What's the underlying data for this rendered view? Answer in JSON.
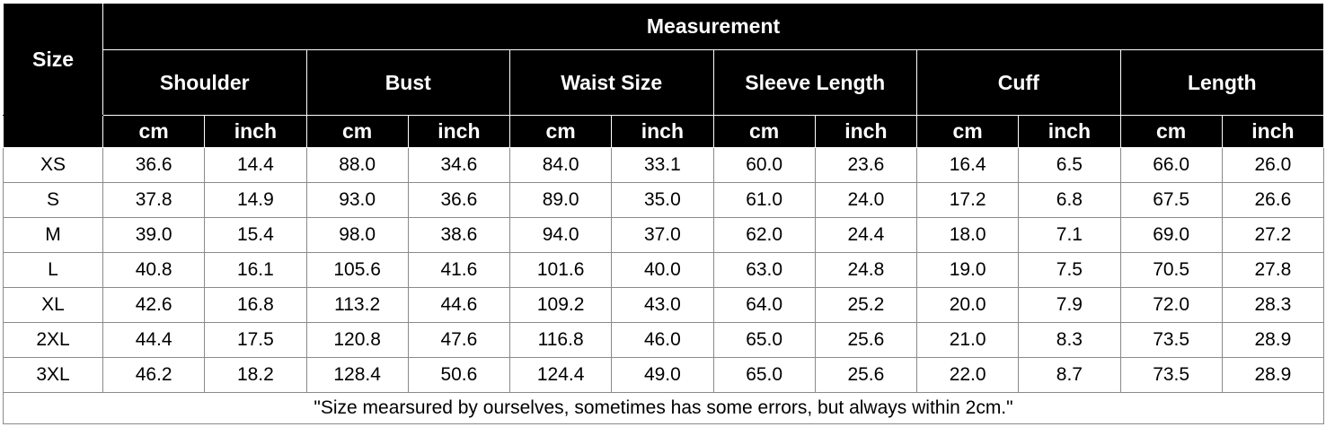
{
  "header": {
    "size": "Size",
    "measurement": "Measurement",
    "groups": [
      "Shoulder",
      "Bust",
      "Waist Size",
      "Sleeve Length",
      "Cuff",
      "Length"
    ],
    "units": [
      "cm",
      "inch"
    ]
  },
  "table": {
    "rows": [
      [
        "XS",
        "36.6",
        "14.4",
        "88.0",
        "34.6",
        "84.0",
        "33.1",
        "60.0",
        "23.6",
        "16.4",
        "6.5",
        "66.0",
        "26.0"
      ],
      [
        "S",
        "37.8",
        "14.9",
        "93.0",
        "36.6",
        "89.0",
        "35.0",
        "61.0",
        "24.0",
        "17.2",
        "6.8",
        "67.5",
        "26.6"
      ],
      [
        "M",
        "39.0",
        "15.4",
        "98.0",
        "38.6",
        "94.0",
        "37.0",
        "62.0",
        "24.4",
        "18.0",
        "7.1",
        "69.0",
        "27.2"
      ],
      [
        "L",
        "40.8",
        "16.1",
        "105.6",
        "41.6",
        "101.6",
        "40.0",
        "63.0",
        "24.8",
        "19.0",
        "7.5",
        "70.5",
        "27.8"
      ],
      [
        "XL",
        "42.6",
        "16.8",
        "113.2",
        "44.6",
        "109.2",
        "43.0",
        "64.0",
        "25.2",
        "20.0",
        "7.9",
        "72.0",
        "28.3"
      ],
      [
        "2XL",
        "44.4",
        "17.5",
        "120.8",
        "47.6",
        "116.8",
        "46.0",
        "65.0",
        "25.6",
        "21.0",
        "8.3",
        "73.5",
        "28.9"
      ],
      [
        "3XL",
        "46.2",
        "18.2",
        "128.4",
        "50.6",
        "124.4",
        "49.0",
        "65.0",
        "25.6",
        "22.0",
        "8.7",
        "73.5",
        "28.9"
      ]
    ]
  },
  "footnote": "\"Size mearsured by ourselves, sometimes has some errors, but always within 2cm.\""
}
